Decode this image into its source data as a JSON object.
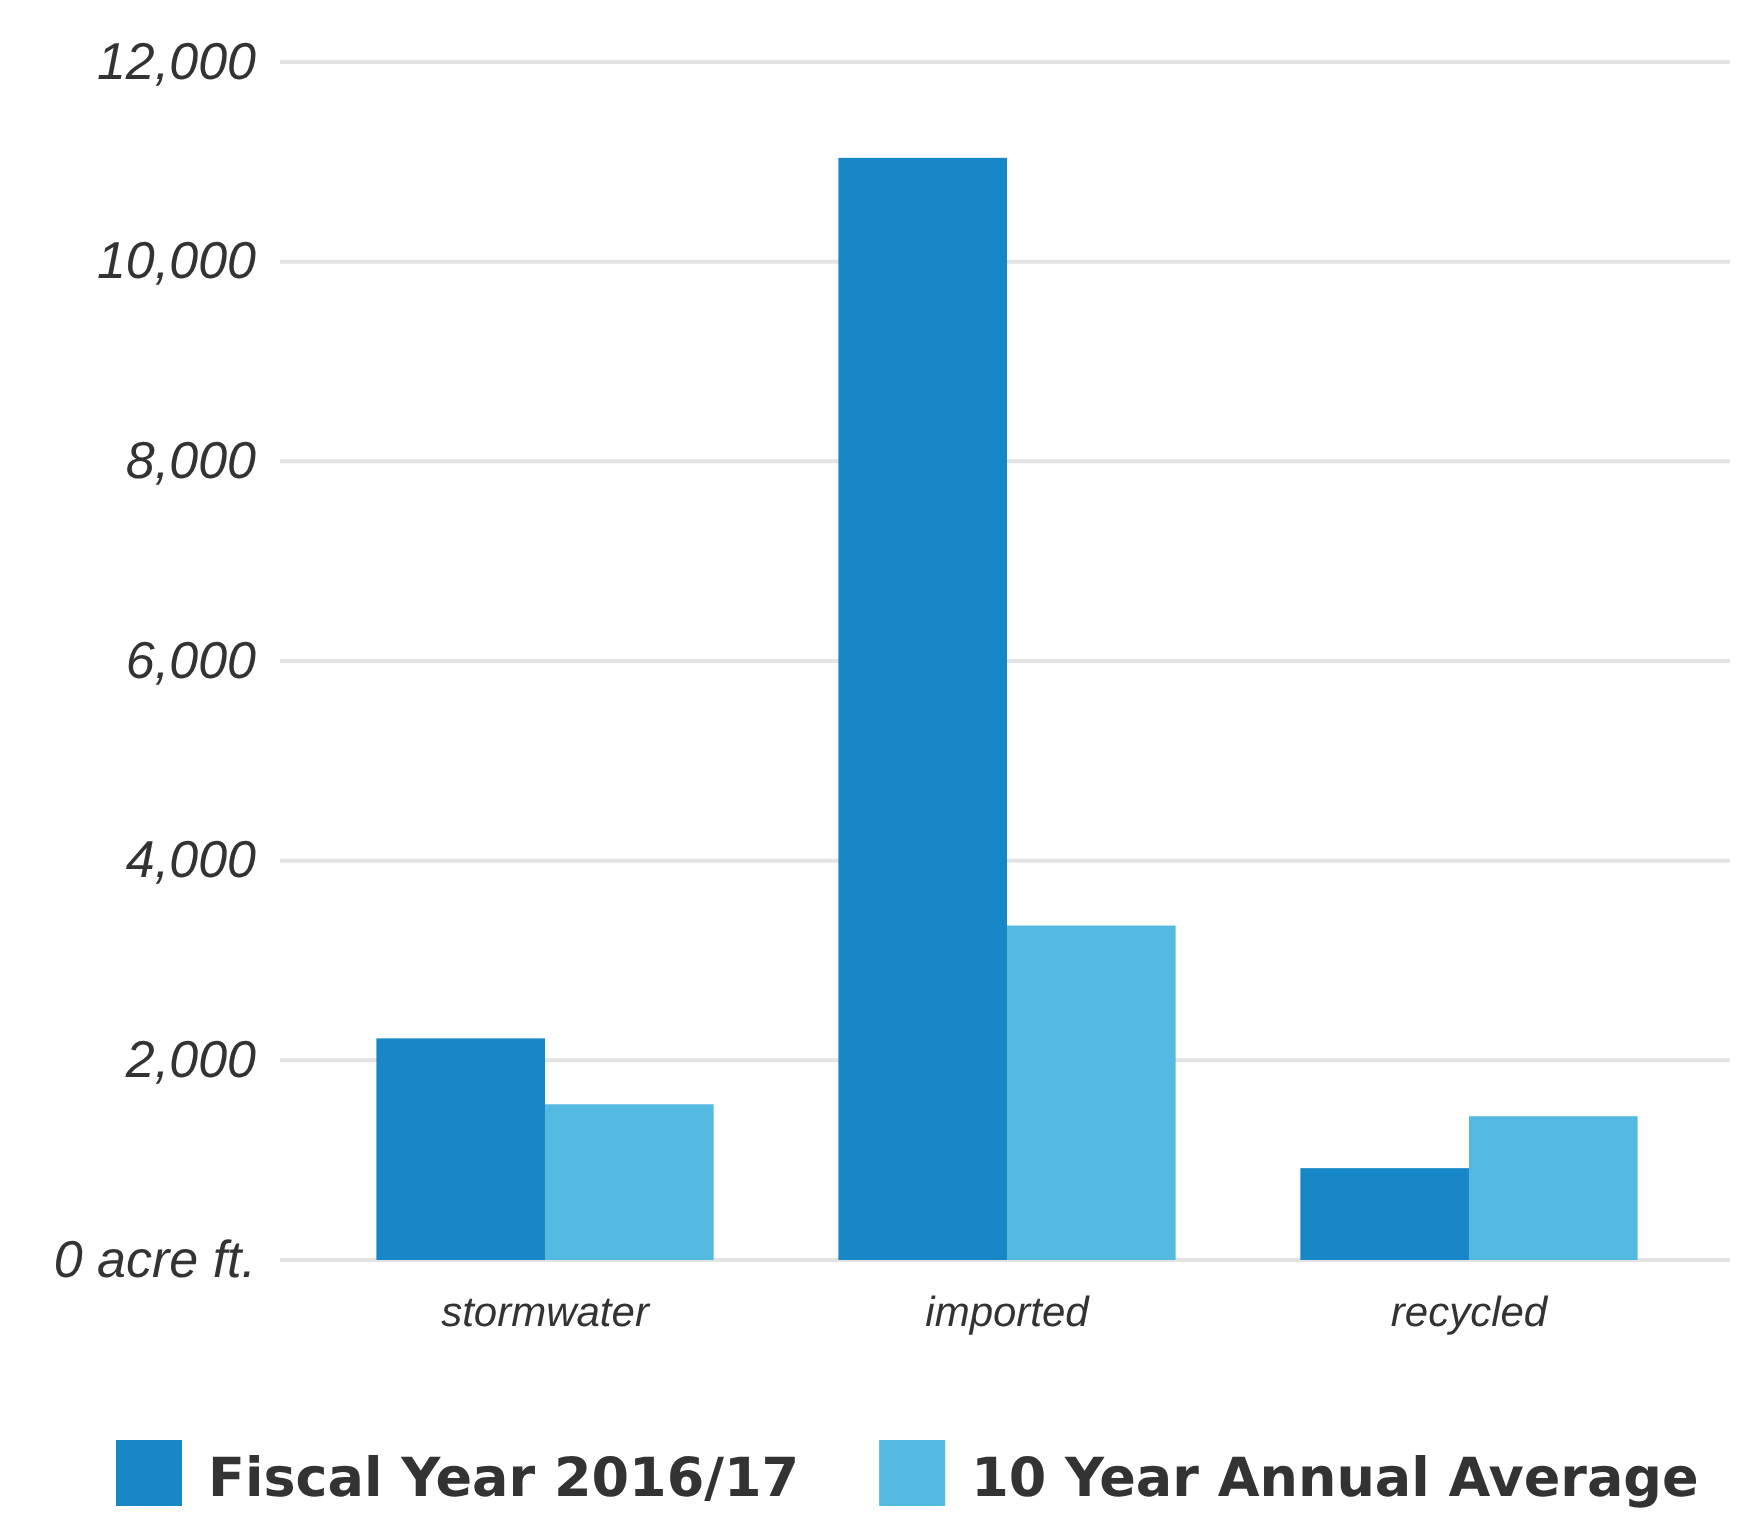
{
  "chart_data": {
    "type": "bar",
    "categories": [
      "stormwater",
      "imported",
      "recycled"
    ],
    "series": [
      {
        "name": "Fiscal Year 2016/17",
        "color": "#1787c7",
        "values": [
          2220,
          11040,
          920
        ]
      },
      {
        "name": "10 Year Annual Average",
        "color": "#53b9e0",
        "values": [
          1560,
          3350,
          1440
        ]
      }
    ],
    "ylim": [
      0,
      12000
    ],
    "yticks": [
      {
        "value": 0,
        "label": "0 acre ft."
      },
      {
        "value": 2000,
        "label": "2,000"
      },
      {
        "value": 4000,
        "label": "4,000"
      },
      {
        "value": 6000,
        "label": "6,000"
      },
      {
        "value": 8000,
        "label": "8,000"
      },
      {
        "value": 10000,
        "label": "10,000"
      },
      {
        "value": 12000,
        "label": "12,000"
      }
    ],
    "grid": "y",
    "legend": "bottom"
  }
}
